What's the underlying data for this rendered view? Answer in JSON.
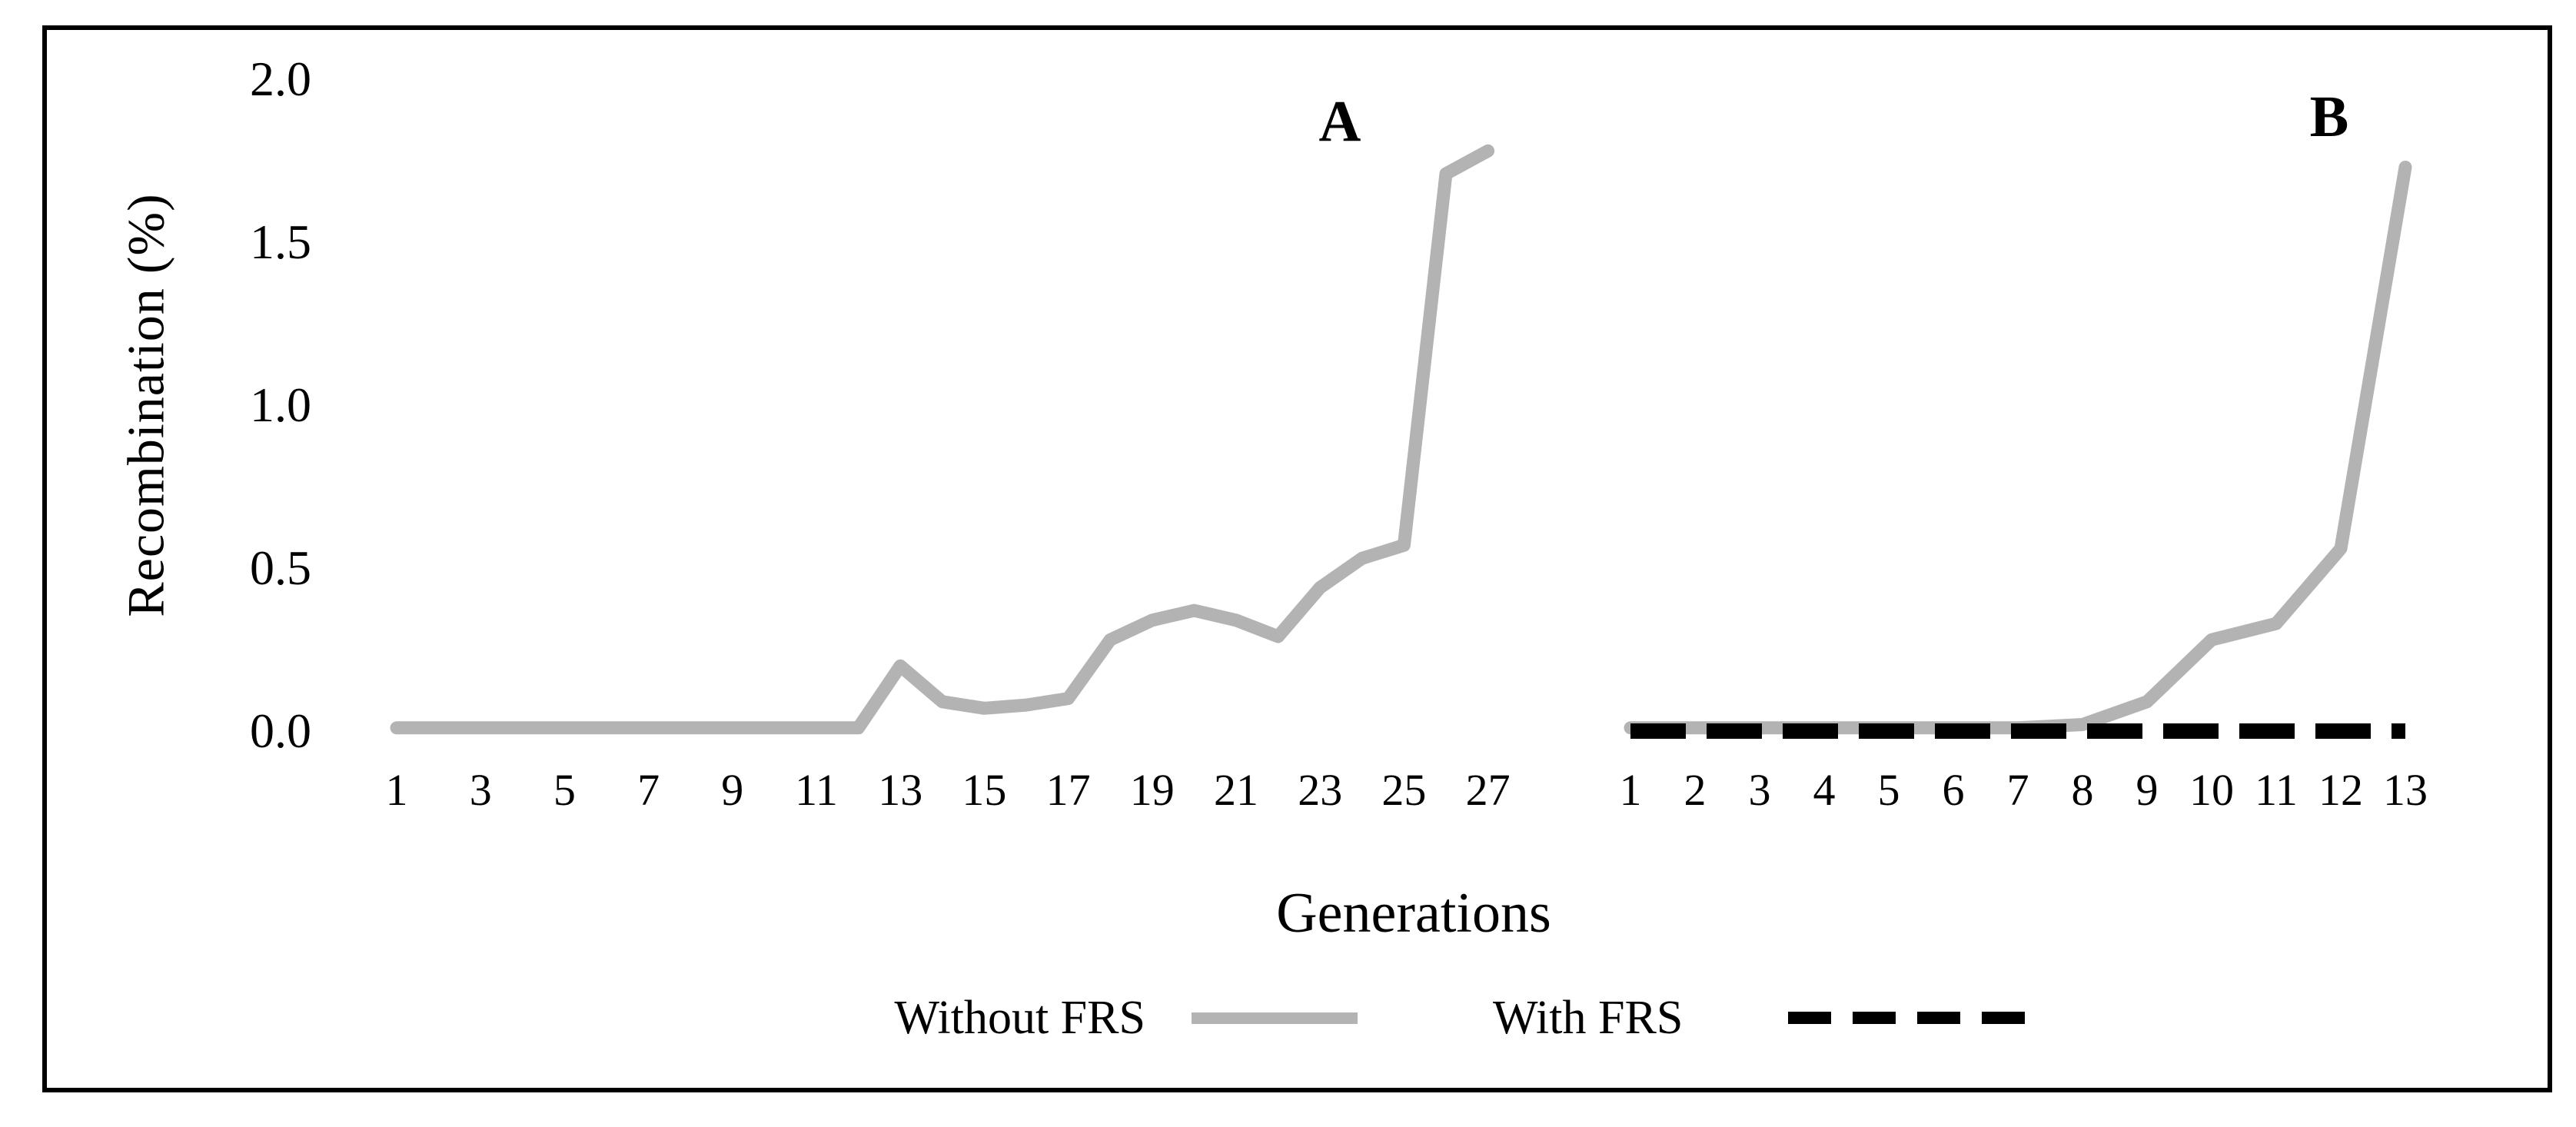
{
  "figure": {
    "y_axis_title": "Recombination (%)",
    "x_axis_title": "Generations",
    "panel_a_label": "A",
    "panel_b_label": "B"
  },
  "colors": {
    "without_frs": "#b3b3b3",
    "with_frs": "#000000",
    "frame": "#000000",
    "background": "#ffffff",
    "text": "#000000"
  },
  "legend": {
    "position": "bottom",
    "items": [
      {
        "label": "Without FRS",
        "style": "solid",
        "color": "#b3b3b3"
      },
      {
        "label": "With FRS",
        "style": "dashed",
        "color": "#000000"
      }
    ]
  },
  "chart_data": [
    {
      "type": "line",
      "panel": "A",
      "title": "",
      "xlabel": "Generations",
      "ylabel": "Recombination (%)",
      "ylim": [
        0,
        2
      ],
      "grid": false,
      "y_ticks": {
        "values": [
          0,
          0.5,
          1,
          1.5,
          2
        ],
        "labels": [
          "0.0",
          "0.5",
          "1.0",
          "1.5",
          "2.0"
        ]
      },
      "x": [
        1,
        2,
        3,
        4,
        5,
        6,
        7,
        8,
        9,
        10,
        11,
        12,
        13,
        14,
        15,
        16,
        17,
        18,
        19,
        20,
        21,
        22,
        23,
        24,
        25,
        26,
        27
      ],
      "x_ticks": [
        1,
        3,
        5,
        7,
        9,
        11,
        13,
        15,
        17,
        19,
        21,
        23,
        25,
        27
      ],
      "series": [
        {
          "name": "Without FRS",
          "color": "#b3b3b3",
          "dash": false,
          "values": [
            0.01,
            0.01,
            0.01,
            0.01,
            0.01,
            0.01,
            0.01,
            0.01,
            0.01,
            0.01,
            0.01,
            0.01,
            0.2,
            0.09,
            0.07,
            0.08,
            0.1,
            0.28,
            0.34,
            0.37,
            0.34,
            0.29,
            0.44,
            0.53,
            0.57,
            1.71,
            1.78
          ]
        }
      ]
    },
    {
      "type": "line",
      "panel": "B",
      "title": "",
      "xlabel": "Generations",
      "ylabel": "Recombination (%)",
      "ylim": [
        0,
        2
      ],
      "grid": false,
      "y_ticks": {
        "values": [
          0,
          0.5,
          1,
          1.5,
          2
        ],
        "labels": [
          "0.0",
          "0.5",
          "1.0",
          "1.5",
          "2.0"
        ]
      },
      "x": [
        1,
        2,
        3,
        4,
        5,
        6,
        7,
        8,
        9,
        10,
        11,
        12,
        13
      ],
      "x_ticks": [
        1,
        2,
        3,
        4,
        5,
        6,
        7,
        8,
        9,
        10,
        11,
        12,
        13
      ],
      "series": [
        {
          "name": "Without FRS",
          "color": "#b3b3b3",
          "dash": false,
          "values": [
            0.01,
            0.01,
            0.01,
            0.01,
            0.01,
            0.01,
            0.01,
            0.02,
            0.09,
            0.28,
            0.33,
            0.56,
            1.73
          ]
        },
        {
          "name": "With FRS",
          "color": "#000000",
          "dash": true,
          "values": [
            0,
            0,
            0,
            0,
            0,
            0,
            0,
            0,
            0,
            0,
            0,
            0,
            0
          ]
        }
      ]
    }
  ]
}
